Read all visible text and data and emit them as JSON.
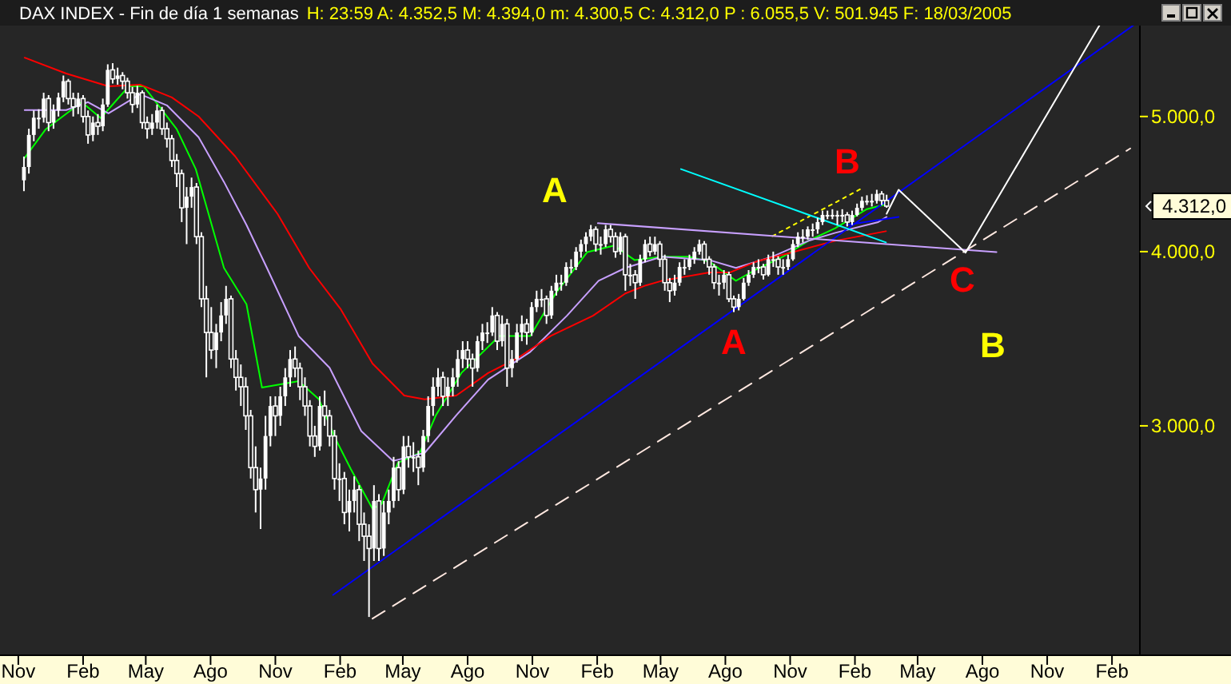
{
  "chart_data": {
    "type": "candlestick",
    "title": "DAX INDEX - Fin de día 1 semanas",
    "subtitle": "H: 23:59  A: 4.352,5  M: 4.394,0  m: 4.300,5  C: 4.312,0  P : 6.055,5  V: 501.945  F: 18/03/2005",
    "log": true,
    "grid": false,
    "color": "#ffffff",
    "xlim": [
      "2001-10-06",
      "2006-07-20"
    ],
    "ylim": [
      2054,
      5810
    ],
    "xticks": [
      {
        "value": "2001-11-01",
        "label": "Nov"
      },
      {
        "value": "2002-02-01",
        "label": "Feb"
      },
      {
        "value": "2002-05-01",
        "label": "May"
      },
      {
        "value": "2002-08-01",
        "label": "Ago"
      },
      {
        "value": "2002-11-01",
        "label": "Nov"
      },
      {
        "value": "2003-02-01",
        "label": "Feb"
      },
      {
        "value": "2003-05-01",
        "label": "May"
      },
      {
        "value": "2003-08-01",
        "label": "Ago"
      },
      {
        "value": "2003-11-01",
        "label": "Nov"
      },
      {
        "value": "2004-02-01",
        "label": "Feb"
      },
      {
        "value": "2004-05-01",
        "label": "May"
      },
      {
        "value": "2004-08-01",
        "label": "Ago"
      },
      {
        "value": "2004-11-01",
        "label": "Nov"
      },
      {
        "value": "2005-02-01",
        "label": "Feb"
      },
      {
        "value": "2005-05-01",
        "label": "May"
      },
      {
        "value": "2005-08-01",
        "label": "Ago"
      },
      {
        "value": "2005-11-01",
        "label": "Nov"
      },
      {
        "value": "2006-02-01",
        "label": "Feb"
      }
    ],
    "yticks": [
      {
        "value": 3000,
        "label": "3.000,0"
      },
      {
        "value": 4000,
        "label": "4.000,0"
      },
      {
        "value": 5000,
        "label": "5.000,0"
      }
    ],
    "x": [
      "2001-11-09",
      "2001-11-16",
      "2001-11-23",
      "2001-11-30",
      "2001-12-07",
      "2001-12-14",
      "2001-12-21",
      "2001-12-28",
      "2002-01-04",
      "2002-01-11",
      "2002-01-18",
      "2002-01-25",
      "2002-02-01",
      "2002-02-08",
      "2002-02-15",
      "2002-02-22",
      "2002-03-01",
      "2002-03-08",
      "2002-03-15",
      "2002-03-22",
      "2002-03-29",
      "2002-04-05",
      "2002-04-12",
      "2002-04-19",
      "2002-04-26",
      "2002-05-03",
      "2002-05-10",
      "2002-05-17",
      "2002-05-24",
      "2002-05-31",
      "2002-06-07",
      "2002-06-14",
      "2002-06-21",
      "2002-06-28",
      "2002-07-05",
      "2002-07-12",
      "2002-07-19",
      "2002-07-26",
      "2002-08-02",
      "2002-08-09",
      "2002-08-16",
      "2002-08-23",
      "2002-08-30",
      "2002-09-06",
      "2002-09-13",
      "2002-09-20",
      "2002-09-27",
      "2002-10-04",
      "2002-10-11",
      "2002-10-18",
      "2002-10-25",
      "2002-11-01",
      "2002-11-08",
      "2002-11-15",
      "2002-11-22",
      "2002-11-29",
      "2002-12-06",
      "2002-12-13",
      "2002-12-20",
      "2002-12-27",
      "2003-01-03",
      "2003-01-10",
      "2003-01-17",
      "2003-01-24",
      "2003-01-31",
      "2003-02-07",
      "2003-02-14",
      "2003-02-21",
      "2003-02-28",
      "2003-03-07",
      "2003-03-14",
      "2003-03-21",
      "2003-03-28",
      "2003-04-04",
      "2003-04-11",
      "2003-04-18",
      "2003-04-25",
      "2003-05-02",
      "2003-05-09",
      "2003-05-16",
      "2003-05-23",
      "2003-05-30",
      "2003-06-06",
      "2003-06-13",
      "2003-06-20",
      "2003-06-27",
      "2003-07-04",
      "2003-07-11",
      "2003-07-18",
      "2003-07-25",
      "2003-08-01",
      "2003-08-08",
      "2003-08-15",
      "2003-08-22",
      "2003-08-29",
      "2003-09-05",
      "2003-09-12",
      "2003-09-19",
      "2003-09-26",
      "2003-10-03",
      "2003-10-10",
      "2003-10-17",
      "2003-10-24",
      "2003-10-31",
      "2003-11-07",
      "2003-11-14",
      "2003-11-21",
      "2003-11-28",
      "2003-12-05",
      "2003-12-12",
      "2003-12-19",
      "2003-12-26",
      "2004-01-02",
      "2004-01-09",
      "2004-01-16",
      "2004-01-23",
      "2004-01-30",
      "2004-02-06",
      "2004-02-13",
      "2004-02-20",
      "2004-02-27",
      "2004-03-05",
      "2004-03-12",
      "2004-03-19",
      "2004-03-26",
      "2004-04-02",
      "2004-04-09",
      "2004-04-16",
      "2004-04-23",
      "2004-04-30",
      "2004-05-07",
      "2004-05-14",
      "2004-05-21",
      "2004-05-28",
      "2004-06-04",
      "2004-06-11",
      "2004-06-18",
      "2004-06-25",
      "2004-07-02",
      "2004-07-09",
      "2004-07-16",
      "2004-07-23",
      "2004-07-30",
      "2004-08-06",
      "2004-08-13",
      "2004-08-20",
      "2004-08-27",
      "2004-09-03",
      "2004-09-10",
      "2004-09-17",
      "2004-09-24",
      "2004-10-01",
      "2004-10-08",
      "2004-10-15",
      "2004-10-22",
      "2004-10-29",
      "2004-11-05",
      "2004-11-12",
      "2004-11-19",
      "2004-11-26",
      "2004-12-03",
      "2004-12-10",
      "2004-12-17",
      "2004-12-24",
      "2004-12-31",
      "2005-01-07",
      "2005-01-14",
      "2005-01-21",
      "2005-01-28",
      "2005-02-04",
      "2005-02-11",
      "2005-02-18",
      "2005-02-25",
      "2005-03-04",
      "2005-03-11",
      "2005-03-18"
    ],
    "ohlc": [
      [
        4500,
        4680,
        4420,
        4600
      ],
      [
        4600,
        4900,
        4550,
        4850
      ],
      [
        4850,
        5050,
        4800,
        4990
      ],
      [
        4990,
        5060,
        4900,
        4990
      ],
      [
        4990,
        5200,
        4950,
        5150
      ],
      [
        5150,
        5180,
        4880,
        4950
      ],
      [
        4950,
        5100,
        4900,
        5050
      ],
      [
        5050,
        5200,
        5000,
        5160
      ],
      [
        5160,
        5350,
        5120,
        5300
      ],
      [
        5300,
        5320,
        5100,
        5150
      ],
      [
        5150,
        5200,
        5000,
        5080
      ],
      [
        5080,
        5200,
        5020,
        5150
      ],
      [
        5150,
        5180,
        4950,
        5000
      ],
      [
        5000,
        5050,
        4780,
        4850
      ],
      [
        4850,
        5000,
        4800,
        4950
      ],
      [
        4950,
        5020,
        4850,
        4920
      ],
      [
        4920,
        5150,
        4880,
        5100
      ],
      [
        5100,
        5450,
        5080,
        5400
      ],
      [
        5400,
        5460,
        5280,
        5320
      ],
      [
        5320,
        5420,
        5270,
        5350
      ],
      [
        5350,
        5380,
        5230,
        5300
      ],
      [
        5300,
        5330,
        5150,
        5200
      ],
      [
        5200,
        5250,
        5030,
        5100
      ],
      [
        5100,
        5260,
        5070,
        5200
      ],
      [
        5200,
        5220,
        4900,
        4950
      ],
      [
        4950,
        5000,
        4820,
        4900
      ],
      [
        4900,
        5020,
        4850,
        4950
      ],
      [
        4950,
        5100,
        4900,
        5050
      ],
      [
        5050,
        5080,
        4850,
        4900
      ],
      [
        4900,
        4950,
        4750,
        4820
      ],
      [
        4820,
        4850,
        4600,
        4650
      ],
      [
        4650,
        4700,
        4450,
        4550
      ],
      [
        4550,
        4580,
        4200,
        4300
      ],
      [
        4300,
        4450,
        4050,
        4380
      ],
      [
        4380,
        4520,
        4300,
        4450
      ],
      [
        4450,
        4480,
        4050,
        4100
      ],
      [
        4100,
        4130,
        3650,
        3700
      ],
      [
        3700,
        3780,
        3250,
        3500
      ],
      [
        3500,
        3650,
        3350,
        3400
      ],
      [
        3400,
        3550,
        3300,
        3500
      ],
      [
        3500,
        3680,
        3450,
        3600
      ],
      [
        3600,
        3780,
        3550,
        3700
      ],
      [
        3700,
        3720,
        3300,
        3350
      ],
      [
        3350,
        3400,
        3180,
        3250
      ],
      [
        3250,
        3320,
        3100,
        3200
      ],
      [
        3200,
        3250,
        2980,
        3050
      ],
      [
        3050,
        3080,
        2750,
        2800
      ],
      [
        2800,
        2900,
        2600,
        2700
      ],
      [
        2700,
        2800,
        2530,
        2750
      ],
      [
        2750,
        3050,
        2700,
        2950
      ],
      [
        2950,
        3150,
        2900,
        3100
      ],
      [
        3100,
        3150,
        2950,
        3050
      ],
      [
        3050,
        3200,
        3000,
        3150
      ],
      [
        3150,
        3300,
        3100,
        3250
      ],
      [
        3250,
        3400,
        3200,
        3350
      ],
      [
        3350,
        3420,
        3250,
        3300
      ],
      [
        3300,
        3330,
        3130,
        3200
      ],
      [
        3200,
        3250,
        3050,
        3100
      ],
      [
        3100,
        3130,
        2900,
        2950
      ],
      [
        2950,
        3000,
        2850,
        2900
      ],
      [
        2900,
        3150,
        2880,
        3100
      ],
      [
        3100,
        3180,
        3000,
        3050
      ],
      [
        3050,
        3080,
        2900,
        2950
      ],
      [
        2950,
        2980,
        2700,
        2750
      ],
      [
        2750,
        2820,
        2650,
        2750
      ],
      [
        2750,
        2780,
        2550,
        2600
      ],
      [
        2600,
        2700,
        2520,
        2650
      ],
      [
        2650,
        2760,
        2600,
        2700
      ],
      [
        2700,
        2720,
        2480,
        2550
      ],
      [
        2550,
        2600,
        2400,
        2500
      ],
      [
        2500,
        2550,
        2188,
        2450
      ],
      [
        2450,
        2720,
        2400,
        2650
      ],
      [
        2650,
        2680,
        2400,
        2450
      ],
      [
        2450,
        2650,
        2420,
        2600
      ],
      [
        2600,
        2700,
        2550,
        2650
      ],
      [
        2650,
        2850,
        2620,
        2800
      ],
      [
        2800,
        2830,
        2650,
        2700
      ],
      [
        2700,
        2950,
        2680,
        2900
      ],
      [
        2900,
        2950,
        2800,
        2850
      ],
      [
        2850,
        2920,
        2780,
        2850
      ],
      [
        2850,
        2880,
        2720,
        2800
      ],
      [
        2800,
        2980,
        2780,
        2950
      ],
      [
        2950,
        3150,
        2920,
        3100
      ],
      [
        3100,
        3250,
        3050,
        3200
      ],
      [
        3200,
        3300,
        3150,
        3250
      ],
      [
        3250,
        3280,
        3100,
        3150
      ],
      [
        3150,
        3250,
        3100,
        3200
      ],
      [
        3200,
        3300,
        3150,
        3250
      ],
      [
        3250,
        3400,
        3200,
        3350
      ],
      [
        3350,
        3450,
        3300,
        3400
      ],
      [
        3400,
        3450,
        3300,
        3350
      ],
      [
        3350,
        3380,
        3200,
        3300
      ],
      [
        3300,
        3480,
        3280,
        3450
      ],
      [
        3450,
        3550,
        3400,
        3500
      ],
      [
        3500,
        3560,
        3440,
        3500
      ],
      [
        3500,
        3650,
        3480,
        3600
      ],
      [
        3600,
        3620,
        3400,
        3450
      ],
      [
        3450,
        3600,
        3420,
        3550
      ],
      [
        3550,
        3580,
        3200,
        3300
      ],
      [
        3300,
        3400,
        3250,
        3350
      ],
      [
        3350,
        3550,
        3330,
        3500
      ],
      [
        3500,
        3600,
        3450,
        3550
      ],
      [
        3550,
        3580,
        3430,
        3500
      ],
      [
        3500,
        3680,
        3480,
        3650
      ],
      [
        3650,
        3750,
        3620,
        3700
      ],
      [
        3700,
        3760,
        3650,
        3700
      ],
      [
        3700,
        3720,
        3550,
        3600
      ],
      [
        3600,
        3780,
        3580,
        3750
      ],
      [
        3750,
        3850,
        3720,
        3800
      ],
      [
        3800,
        3850,
        3750,
        3800
      ],
      [
        3800,
        3930,
        3780,
        3900
      ],
      [
        3900,
        3950,
        3860,
        3900
      ],
      [
        3900,
        4030,
        3880,
        4000
      ],
      [
        4000,
        4080,
        3960,
        4050
      ],
      [
        4050,
        4130,
        4000,
        4100
      ],
      [
        4100,
        4180,
        4070,
        4150
      ],
      [
        4150,
        4170,
        4000,
        4050
      ],
      [
        4050,
        4100,
        3980,
        4050
      ],
      [
        4050,
        4180,
        4030,
        4150
      ],
      [
        4150,
        4180,
        4060,
        4100
      ],
      [
        4100,
        4130,
        3960,
        4000
      ],
      [
        4000,
        4130,
        3980,
        4100
      ],
      [
        4100,
        4120,
        3750,
        3850
      ],
      [
        3850,
        3920,
        3780,
        3850
      ],
      [
        3850,
        3880,
        3700,
        3800
      ],
      [
        3800,
        3980,
        3780,
        3950
      ],
      [
        3950,
        4080,
        3930,
        4050
      ],
      [
        4050,
        4100,
        3970,
        4000
      ],
      [
        4000,
        4100,
        3980,
        4050
      ],
      [
        4050,
        4070,
        3900,
        3950
      ],
      [
        3950,
        3980,
        3750,
        3800
      ],
      [
        3800,
        3830,
        3680,
        3750
      ],
      [
        3750,
        3850,
        3720,
        3800
      ],
      [
        3800,
        3930,
        3780,
        3900
      ],
      [
        3900,
        3950,
        3850,
        3900
      ],
      [
        3900,
        3980,
        3880,
        3950
      ],
      [
        3950,
        4030,
        3920,
        4000
      ],
      [
        4000,
        4080,
        3980,
        4050
      ],
      [
        4050,
        4070,
        3920,
        3950
      ],
      [
        3950,
        3970,
        3850,
        3900
      ],
      [
        3900,
        3920,
        3760,
        3800
      ],
      [
        3800,
        3850,
        3720,
        3800
      ],
      [
        3800,
        3880,
        3760,
        3850
      ],
      [
        3850,
        3870,
        3680,
        3700
      ],
      [
        3700,
        3720,
        3620,
        3650
      ],
      [
        3650,
        3730,
        3630,
        3700
      ],
      [
        3700,
        3830,
        3690,
        3800
      ],
      [
        3800,
        3880,
        3780,
        3850
      ],
      [
        3850,
        3930,
        3830,
        3900
      ],
      [
        3900,
        3950,
        3860,
        3900
      ],
      [
        3900,
        3920,
        3820,
        3850
      ],
      [
        3850,
        3980,
        3840,
        3950
      ],
      [
        3950,
        4000,
        3900,
        3950
      ],
      [
        3950,
        3970,
        3850,
        3900
      ],
      [
        3900,
        3950,
        3850,
        3900
      ],
      [
        3900,
        3980,
        3880,
        3950
      ],
      [
        3950,
        4080,
        3940,
        4050
      ],
      [
        4050,
        4130,
        4030,
        4100
      ],
      [
        4100,
        4150,
        4060,
        4100
      ],
      [
        4100,
        4170,
        4080,
        4150
      ],
      [
        4150,
        4190,
        4100,
        4150
      ],
      [
        4150,
        4230,
        4120,
        4200
      ],
      [
        4200,
        4280,
        4180,
        4250
      ],
      [
        4250,
        4280,
        4220,
        4250
      ],
      [
        4250,
        4290,
        4220,
        4250
      ],
      [
        4250,
        4280,
        4180,
        4250
      ],
      [
        4250,
        4290,
        4200,
        4250
      ],
      [
        4250,
        4270,
        4170,
        4200
      ],
      [
        4200,
        4280,
        4180,
        4250
      ],
      [
        4250,
        4330,
        4240,
        4300
      ],
      [
        4300,
        4380,
        4280,
        4350
      ],
      [
        4350,
        4390,
        4320,
        4350
      ],
      [
        4350,
        4400,
        4310,
        4350
      ],
      [
        4350,
        4430,
        4330,
        4400
      ],
      [
        4400,
        4420,
        4320,
        4352.5
      ],
      [
        4352.5,
        4394,
        4300.5,
        4312
      ]
    ],
    "series": [
      {
        "type": "line",
        "color": "#00ff00",
        "x": [
          "2001-11-10",
          "2001-12-10",
          "2002-01-30",
          "2002-02-26",
          "2002-04-07",
          "2002-04-28",
          "2002-06-14",
          "2002-07-11",
          "2002-08-20",
          "2002-09-21",
          "2002-10-13",
          "2002-12-04",
          "2003-01-02",
          "2003-01-24",
          "2003-02-16",
          "2003-03-19",
          "2003-04-01",
          "2003-04-24",
          "2003-05-25",
          "2003-06-17",
          "2003-07-23",
          "2003-09-15",
          "2003-10-29",
          "2003-12-04",
          "2004-01-18",
          "2004-02-25",
          "2004-03-25",
          "2004-05-03",
          "2004-06-10",
          "2004-07-09",
          "2004-08-16",
          "2004-09-14",
          "2004-10-22",
          "2004-11-27",
          "2005-01-04",
          "2005-02-18",
          "2005-03-18"
        ],
        "values": [
          4669,
          4896,
          5120,
          4987,
          5256,
          5256,
          4896,
          4584,
          3894,
          3667,
          3196,
          3230,
          3134,
          2946,
          2794,
          2616,
          2637,
          2822,
          2869,
          3053,
          3273,
          3480,
          3480,
          3733,
          3997,
          4040,
          3945,
          3967,
          3967,
          3935,
          3812,
          3884,
          3967,
          4072,
          4158,
          4291,
          4326
        ]
      },
      {
        "type": "line",
        "color": "#c8a0ff",
        "x": [
          "2001-11-10",
          "2002-01-08",
          "2002-02-08",
          "2002-03-09",
          "2002-04-23",
          "2002-05-31",
          "2002-07-15",
          "2002-08-20",
          "2002-09-21",
          "2002-10-20",
          "2002-12-04",
          "2003-01-17",
          "2003-03-03",
          "2003-04-17",
          "2003-06-01",
          "2003-07-16",
          "2003-08-30",
          "2003-10-29",
          "2003-12-20",
          "2004-02-03",
          "2004-03-12",
          "2004-05-03",
          "2004-07-09",
          "2004-08-16",
          "2004-10-07",
          "2004-11-27",
          "2005-01-04",
          "2005-03-06",
          "2005-03-18"
        ],
        "values": [
          5053,
          5053,
          5120,
          5026,
          5188,
          5093,
          4832,
          4488,
          4180,
          3894,
          3480,
          3302,
          2974,
          2831,
          2869,
          3053,
          3238,
          3390,
          3598,
          3812,
          3894,
          3967,
          3945,
          3894,
          3967,
          4072,
          4126,
          4200,
          4236
        ]
      },
      {
        "type": "line",
        "color": "#ff0000",
        "x": [
          "2001-11-10",
          "2002-01-08",
          "2002-03-09",
          "2002-04-23",
          "2002-06-07",
          "2002-07-15",
          "2002-09-05",
          "2002-11-04",
          "2002-12-19",
          "2003-02-02",
          "2003-03-19",
          "2003-05-03",
          "2003-06-01",
          "2003-07-16",
          "2003-08-30",
          "2003-10-13",
          "2003-11-27",
          "2004-01-26",
          "2004-03-12",
          "2004-04-10",
          "2004-05-03",
          "2004-07-09",
          "2004-08-07",
          "2004-09-14",
          "2004-11-05",
          "2005-01-04",
          "2005-03-17"
        ],
        "values": [
          5510,
          5368,
          5256,
          5270,
          5160,
          5000,
          4681,
          4258,
          3894,
          3636,
          3325,
          3154,
          3134,
          3154,
          3273,
          3360,
          3480,
          3598,
          3733,
          3783,
          3812,
          3864,
          3864,
          3935,
          3997,
          4072,
          4137
        ]
      },
      {
        "type": "line",
        "color": "#0000ff",
        "x": [
          "2003-01-22",
          "2006-03-03"
        ],
        "values": [
          2269,
          5810
        ]
      },
      {
        "type": "line",
        "color": "#0000ff",
        "x": [
          "2005-01-20",
          "2005-04-04"
        ],
        "values": [
          4180,
          4236
        ]
      },
      {
        "type": "line",
        "color": "#ffff00",
        "line_style": "dotted",
        "x": [
          "2004-10-07",
          "2005-02-11"
        ],
        "values": [
          4104,
          4441
        ]
      },
      {
        "type": "line",
        "color": "#00ffff",
        "x": [
          "2004-05-30",
          "2005-03-17"
        ],
        "values": [
          4584,
          4061
        ]
      },
      {
        "type": "line",
        "color": "#c8a0ff",
        "x": [
          "2004-02-02",
          "2005-08-21"
        ],
        "values": [
          4192,
          3997
        ]
      },
      {
        "type": "line",
        "color": "#ffe8e0",
        "line_style": "dashed",
        "x": [
          "2003-03-19",
          "2006-02-27"
        ],
        "values": [
          2182,
          4743
        ]
      },
      {
        "type": "line",
        "color": "#ffffff",
        "x": [
          "2005-03-18",
          "2005-04-04",
          "2005-07-08",
          "2006-01-14"
        ],
        "values": [
          4258,
          4430,
          3993,
          5810
        ]
      }
    ],
    "annotations": [
      "A",
      "B",
      "A",
      "C",
      "B",
      "4.312,0"
    ]
  }
}
